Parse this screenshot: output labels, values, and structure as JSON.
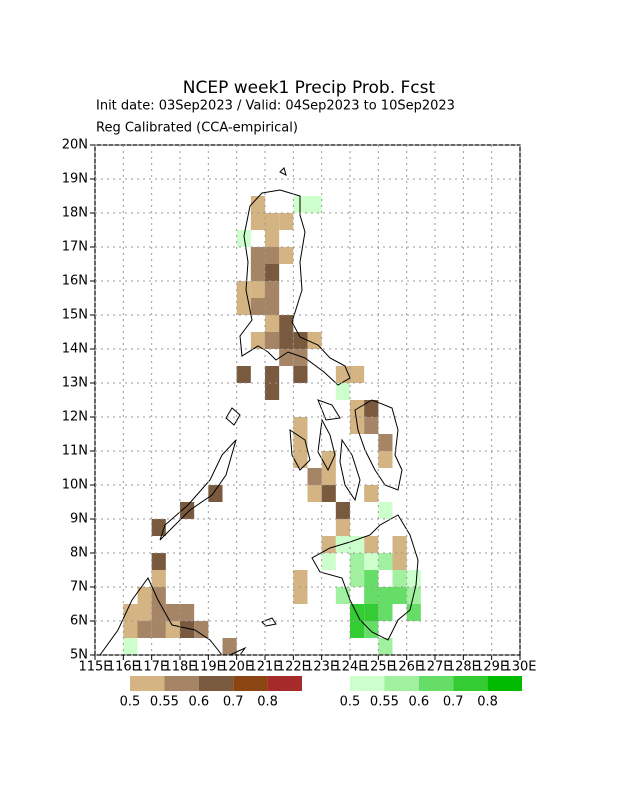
{
  "chart_data": {
    "type": "map",
    "title": "NCEP week1 Precip Prob. Fcst",
    "subtitle": [
      "Init date: 03Sep2023 / Valid: 04Sep2023 to 10Sep2023",
      "Reg Calibrated (CCA-empirical)"
    ],
    "xlim": [
      115,
      130
    ],
    "ylim": [
      5,
      20
    ],
    "grid": true,
    "xticks": [
      {
        "value": 115,
        "label": "115E"
      },
      {
        "value": 116,
        "label": "116E"
      },
      {
        "value": 117,
        "label": "117E"
      },
      {
        "value": 118,
        "label": "118E"
      },
      {
        "value": 119,
        "label": "119E"
      },
      {
        "value": 120,
        "label": "120E"
      },
      {
        "value": 121,
        "label": "121E"
      },
      {
        "value": 122,
        "label": "122E"
      },
      {
        "value": 123,
        "label": "123E"
      },
      {
        "value": 124,
        "label": "124E"
      },
      {
        "value": 125,
        "label": "125E"
      },
      {
        "value": 126,
        "label": "126E"
      },
      {
        "value": 127,
        "label": "127E"
      },
      {
        "value": 128,
        "label": "128E"
      },
      {
        "value": 129,
        "label": "129E"
      },
      {
        "value": 130,
        "label": "130E"
      }
    ],
    "yticks": [
      {
        "value": 5,
        "label": "5N"
      },
      {
        "value": 6,
        "label": "6N"
      },
      {
        "value": 7,
        "label": "7N"
      },
      {
        "value": 8,
        "label": "8N"
      },
      {
        "value": 9,
        "label": "9N"
      },
      {
        "value": 10,
        "label": "10N"
      },
      {
        "value": 11,
        "label": "11N"
      },
      {
        "value": 12,
        "label": "12N"
      },
      {
        "value": 13,
        "label": "13N"
      },
      {
        "value": 14,
        "label": "14N"
      },
      {
        "value": 15,
        "label": "15N"
      },
      {
        "value": 16,
        "label": "16N"
      },
      {
        "value": 17,
        "label": "17N"
      },
      {
        "value": 18,
        "label": "18N"
      },
      {
        "value": 19,
        "label": "19N"
      },
      {
        "value": 20,
        "label": "20N"
      }
    ],
    "below": {
      "levels": [
        0.5,
        0.55,
        0.6,
        0.7,
        0.8
      ],
      "colors": [
        "#d4b483",
        "#a58565",
        "#7a5a3e",
        "#8b4513",
        "#a52a2a"
      ],
      "lon": [
        120.75,
        120.75,
        121.25,
        121.75,
        121.25,
        121.75,
        120.25,
        120.75,
        120.25,
        121.25,
        120.75,
        122.75,
        123.75,
        124.25,
        122.25,
        122.25,
        122.25,
        123.25,
        123.25,
        125.25,
        122.75,
        124.75,
        123.75,
        123.25,
        124.75,
        125.75,
        125.75,
        122.25,
        122.25,
        117.25,
        116.75,
        116.75,
        116.25,
        116.25,
        117.75,
        124.25,
        124.25,
        120.75,
        121.25,
        120.75,
        121.25,
        120.75,
        121.25,
        121.25,
        122.25,
        121.75,
        124.75,
        125.25,
        122.75,
        117.25,
        117.25,
        117.75,
        118.25,
        118.75,
        119.75,
        117.25,
        116.75,
        121.75,
        121.75,
        122.25,
        120.25,
        121.25,
        121.25,
        122.25,
        124.75,
        123.25,
        123.75,
        117.25,
        118.25,
        119.25,
        117.25,
        118.25,
        121.25
      ],
      "lat": [
        18.25,
        17.75,
        17.75,
        17.75,
        17.25,
        16.75,
        15.75,
        15.75,
        15.25,
        14.75,
        14.25,
        14.25,
        13.25,
        13.25,
        11.75,
        11.25,
        10.75,
        10.75,
        10.25,
        10.75,
        9.75,
        9.75,
        8.75,
        8.25,
        8.25,
        8.25,
        7.75,
        7.25,
        6.75,
        7.25,
        6.75,
        6.25,
        6.25,
        5.75,
        5.75,
        12.25,
        11.75,
        16.75,
        16.75,
        16.25,
        15.75,
        15.25,
        15.25,
        14.25,
        13.75,
        13.75,
        11.75,
        11.25,
        10.25,
        6.75,
        6.25,
        6.25,
        6.25,
        5.75,
        5.25,
        5.75,
        5.75,
        14.75,
        14.25,
        14.25,
        13.25,
        13.25,
        12.75,
        13.25,
        12.25,
        9.75,
        9.25,
        8.75,
        9.25,
        9.75,
        7.75,
        5.75,
        16.25
      ],
      "prob": [
        0.5,
        0.5,
        0.5,
        0.5,
        0.5,
        0.5,
        0.5,
        0.5,
        0.5,
        0.5,
        0.5,
        0.5,
        0.5,
        0.5,
        0.5,
        0.5,
        0.5,
        0.5,
        0.5,
        0.5,
        0.5,
        0.5,
        0.5,
        0.5,
        0.5,
        0.5,
        0.5,
        0.5,
        0.5,
        0.5,
        0.5,
        0.5,
        0.5,
        0.5,
        0.5,
        0.5,
        0.5,
        0.55,
        0.55,
        0.55,
        0.55,
        0.55,
        0.55,
        0.55,
        0.55,
        0.55,
        0.55,
        0.55,
        0.55,
        0.55,
        0.55,
        0.55,
        0.55,
        0.55,
        0.55,
        0.55,
        0.55,
        0.6,
        0.6,
        0.6,
        0.6,
        0.6,
        0.6,
        0.6,
        0.6,
        0.6,
        0.6,
        0.6,
        0.6,
        0.6,
        0.6,
        0.6,
        0.6
      ]
    },
    "above": {
      "levels": [
        0.5,
        0.55,
        0.6,
        0.7,
        0.8
      ],
      "colors": [
        "#ccffcc",
        "#a0f0a0",
        "#66dd66",
        "#33cc33",
        "#00bb00"
      ],
      "lon": [
        122.25,
        122.75,
        120.25,
        123.75,
        125.25,
        124.25,
        123.25,
        123.75,
        126.25,
        116.25,
        124.75,
        124.25,
        125.25,
        125.75,
        124.25,
        126.25,
        125.25,
        123.75,
        124.75,
        124.75,
        125.25,
        125.25,
        124.75,
        126.25,
        125.75,
        124.25,
        124.75,
        124.25
      ],
      "lat": [
        18.25,
        18.25,
        17.25,
        12.75,
        9.25,
        8.25,
        7.75,
        8.25,
        7.25,
        5.25,
        7.75,
        7.75,
        7.75,
        7.25,
        7.25,
        6.75,
        5.25,
        6.75,
        7.25,
        6.75,
        6.75,
        6.25,
        5.75,
        6.25,
        6.75,
        6.25,
        6.25,
        5.75
      ],
      "prob": [
        0.5,
        0.5,
        0.5,
        0.5,
        0.5,
        0.5,
        0.5,
        0.5,
        0.5,
        0.5,
        0.5,
        0.55,
        0.55,
        0.55,
        0.55,
        0.55,
        0.55,
        0.55,
        0.6,
        0.6,
        0.6,
        0.6,
        0.6,
        0.6,
        0.6,
        0.7,
        0.7,
        0.7
      ]
    }
  }
}
